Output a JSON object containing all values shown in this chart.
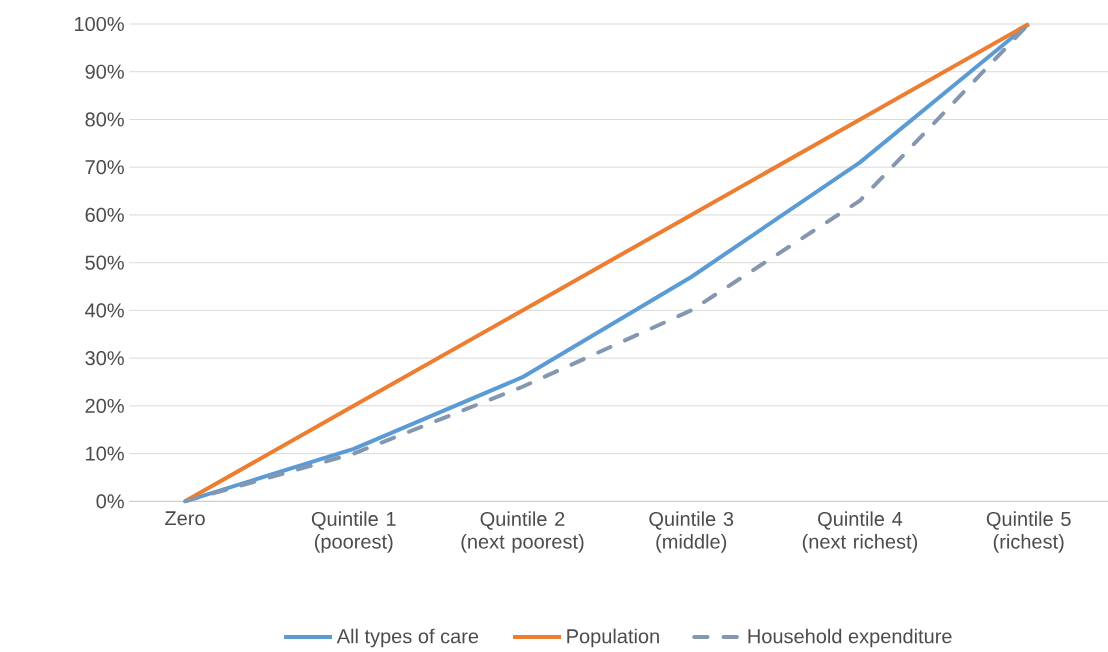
{
  "chart_data": {
    "type": "line",
    "categories": [
      "Zero",
      "Quintile 1 (poorest)",
      "Quintile 2 (next poorest)",
      "Quintile 3 (middle)",
      "Quintile 4 (next richest)",
      "Quintile 5 (richest)"
    ],
    "series": [
      {
        "name": "All types of care",
        "color": "#5b9bd5",
        "values": [
          0,
          11,
          26,
          47,
          71,
          100
        ]
      },
      {
        "name": "Population",
        "color": "#ed7d31",
        "values": [
          0,
          20,
          40,
          60,
          80,
          100
        ]
      },
      {
        "name": "Household expenditure",
        "color": "#8497b0",
        "values": [
          0,
          10,
          24,
          40,
          63,
          100
        ],
        "line_style": "dashed"
      }
    ],
    "ylim": [
      0,
      100
    ],
    "yticks": [
      {
        "value": 0,
        "label": "0%"
      },
      {
        "value": 10,
        "label": "10%"
      },
      {
        "value": 20,
        "label": "20%"
      },
      {
        "value": 30,
        "label": "30%"
      },
      {
        "value": 40,
        "label": "40%"
      },
      {
        "value": 50,
        "label": "50%"
      },
      {
        "value": 60,
        "label": "60%"
      },
      {
        "value": 70,
        "label": "70%"
      },
      {
        "value": 80,
        "label": "80%"
      },
      {
        "value": 90,
        "label": "90%"
      },
      {
        "value": 100,
        "label": "100%"
      }
    ],
    "grid": "y",
    "legend": "bottom",
    "marker": "none",
    "line_style": "solid"
  }
}
